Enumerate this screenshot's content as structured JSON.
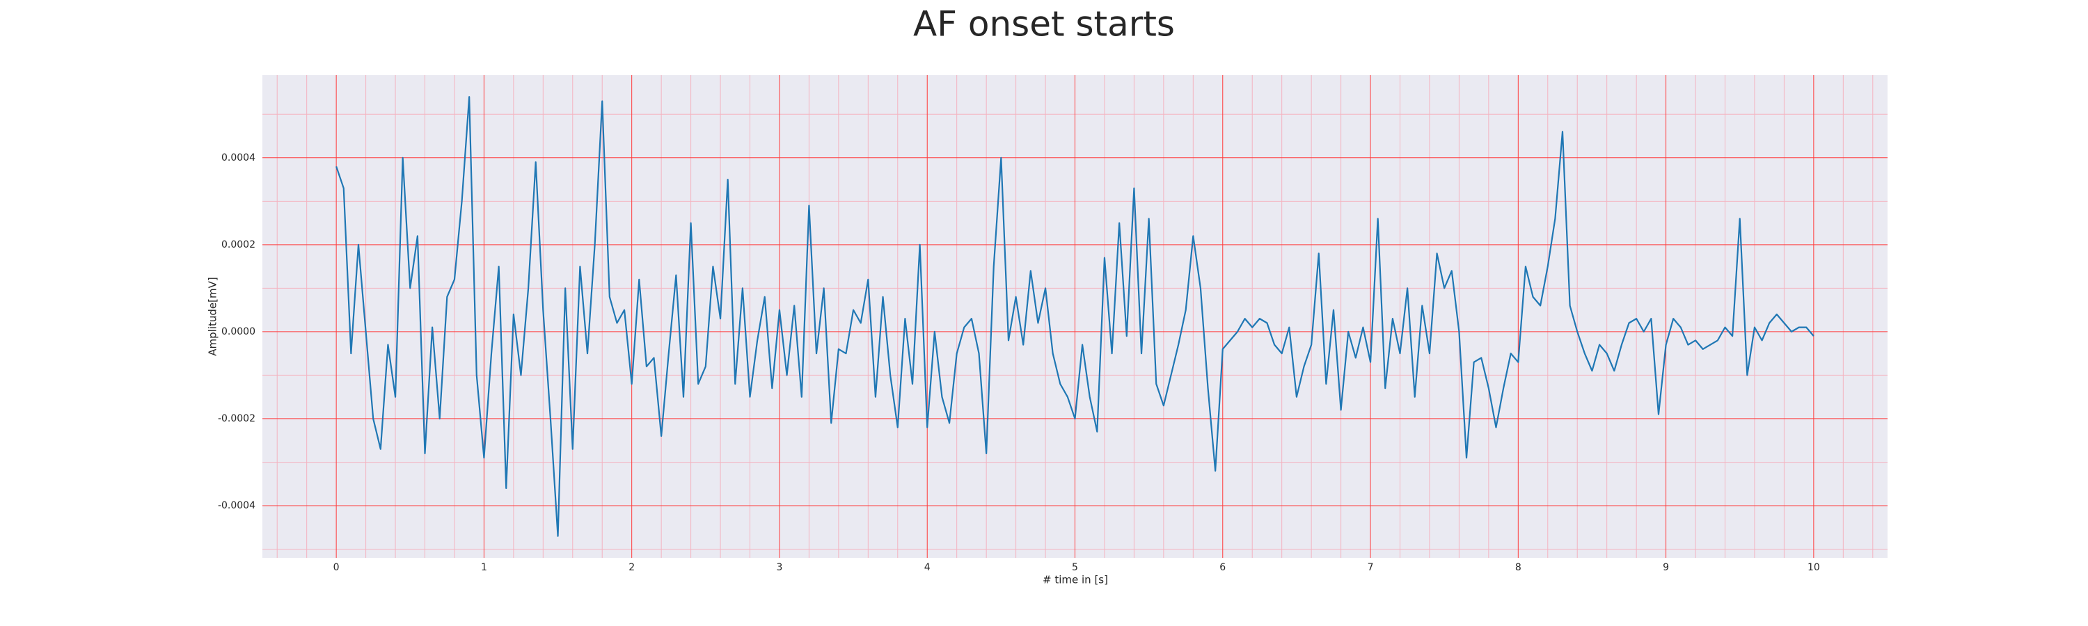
{
  "chart_data": {
    "type": "line",
    "title": "AF onset starts",
    "x_label": "# time in [s]",
    "y_label": "Amplitude[mV]",
    "color": "#1f77b4",
    "xlim": [
      -0.5,
      10.5
    ],
    "ylim": [
      -0.00052,
      0.00059
    ],
    "xticks": [
      0,
      1,
      2,
      3,
      4,
      5,
      6,
      7,
      8,
      9,
      10
    ],
    "yticks": [
      -0.0004,
      -0.0002,
      {
        "value": 0,
        "label": "0.0000"
      },
      0.0002,
      0.0004
    ],
    "xminorticks": [
      -0.4,
      -0.2,
      0.2,
      0.4,
      0.6,
      0.8,
      1.2,
      1.4,
      1.6,
      1.8,
      2.2,
      2.4,
      2.6,
      2.8,
      3.2,
      3.4,
      3.6,
      3.8,
      4.2,
      4.4,
      4.6,
      4.8,
      5.2,
      5.4,
      5.6,
      5.8,
      6.2,
      6.4,
      6.6,
      6.8,
      7.2,
      7.4,
      7.6,
      7.8,
      8.2,
      8.4,
      8.6,
      8.8,
      9.2,
      9.4,
      9.6,
      9.8,
      10.2,
      10.4
    ],
    "yminorticks": [
      -0.0005,
      -0.0003,
      -0.0001,
      0.0001,
      0.0003,
      0.0005
    ],
    "grid": true,
    "grid_color": "#ff3b3b",
    "minor_grid_color": "#f4b3c0",
    "background": "#eaeaf2",
    "x": [
      0,
      0.05,
      0.1,
      0.15,
      0.2,
      0.25,
      0.3,
      0.35,
      0.4,
      0.45,
      0.5,
      0.55,
      0.6,
      0.65,
      0.7,
      0.75,
      0.8,
      0.85,
      0.9,
      0.95,
      1,
      1.05,
      1.1,
      1.15,
      1.2,
      1.25,
      1.3,
      1.35,
      1.4,
      1.45,
      1.5,
      1.55,
      1.6,
      1.65,
      1.7,
      1.75,
      1.8,
      1.85,
      1.9,
      1.95,
      2,
      2.05,
      2.1,
      2.15,
      2.2,
      2.25,
      2.3,
      2.35,
      2.4,
      2.45,
      2.5,
      2.55,
      2.6,
      2.65,
      2.7,
      2.75,
      2.8,
      2.85,
      2.9,
      2.95,
      3,
      3.05,
      3.1,
      3.15,
      3.2,
      3.25,
      3.3,
      3.35,
      3.4,
      3.45,
      3.5,
      3.55,
      3.6,
      3.65,
      3.7,
      3.75,
      3.8,
      3.85,
      3.9,
      3.95,
      4,
      4.05,
      4.1,
      4.15,
      4.2,
      4.25,
      4.3,
      4.35,
      4.4,
      4.45,
      4.5,
      4.55,
      4.6,
      4.65,
      4.7,
      4.75,
      4.8,
      4.85,
      4.9,
      4.95,
      5,
      5.05,
      5.1,
      5.15,
      5.2,
      5.25,
      5.3,
      5.35,
      5.4,
      5.45,
      5.5,
      5.55,
      5.6,
      5.65,
      5.7,
      5.75,
      5.8,
      5.85,
      5.9,
      5.95,
      6,
      6.05,
      6.1,
      6.15,
      6.2,
      6.25,
      6.3,
      6.35,
      6.4,
      6.45,
      6.5,
      6.55,
      6.6,
      6.65,
      6.7,
      6.75,
      6.8,
      6.85,
      6.9,
      6.95,
      7,
      7.05,
      7.1,
      7.15,
      7.2,
      7.25,
      7.3,
      7.35,
      7.4,
      7.45,
      7.5,
      7.55,
      7.6,
      7.65,
      7.7,
      7.75,
      7.8,
      7.85,
      7.9,
      7.95,
      8,
      8.05,
      8.1,
      8.15,
      8.2,
      8.25,
      8.3,
      8.35,
      8.4,
      8.45,
      8.5,
      8.55,
      8.6,
      8.65,
      8.7,
      8.75,
      8.8,
      8.85,
      8.9,
      8.95,
      9,
      9.05,
      9.1,
      9.15,
      9.2,
      9.25,
      9.3,
      9.35,
      9.4,
      9.45,
      9.5,
      9.55,
      9.6,
      9.65,
      9.7,
      9.75,
      9.8,
      9.85,
      9.9,
      9.95,
      10
    ],
    "values": [
      0.00038,
      0.00033,
      -5e-05,
      0.0002,
      0.0,
      -0.0002,
      -0.00027,
      -3e-05,
      -0.00015,
      0.0004,
      0.0001,
      0.00022,
      -0.00028,
      1e-05,
      -0.0002,
      8e-05,
      0.00012,
      0.0003,
      0.00054,
      -0.0001,
      -0.00029,
      -5e-05,
      0.00015,
      -0.00036,
      4e-05,
      -0.0001,
      0.0001,
      0.00039,
      5e-05,
      -0.0002,
      -0.00047,
      0.0001,
      -0.00027,
      0.00015,
      -5e-05,
      0.0002,
      0.00053,
      8e-05,
      2e-05,
      5e-05,
      -0.00012,
      0.00012,
      -8e-05,
      -6e-05,
      -0.00024,
      -5e-05,
      0.00013,
      -0.00015,
      0.00025,
      -0.00012,
      -8e-05,
      0.00015,
      3e-05,
      0.00035,
      -0.00012,
      0.0001,
      -0.00015,
      -2e-05,
      8e-05,
      -0.00013,
      5e-05,
      -0.0001,
      6e-05,
      -0.00015,
      0.00029,
      -5e-05,
      0.0001,
      -0.00021,
      -4e-05,
      -5e-05,
      5e-05,
      2e-05,
      0.00012,
      -0.00015,
      8e-05,
      -0.0001,
      -0.00022,
      3e-05,
      -0.00012,
      0.0002,
      -0.00022,
      0.0,
      -0.00015,
      -0.00021,
      -5e-05,
      1e-05,
      3e-05,
      -5e-05,
      -0.00028,
      0.00015,
      0.0004,
      -2e-05,
      8e-05,
      -3e-05,
      0.00014,
      2e-05,
      0.0001,
      -5e-05,
      -0.00012,
      -0.00015,
      -0.0002,
      -3e-05,
      -0.00015,
      -0.00023,
      0.00017,
      -5e-05,
      0.00025,
      -1e-05,
      0.00033,
      -5e-05,
      0.00026,
      -0.00012,
      -0.00017,
      -0.0001,
      -3e-05,
      5e-05,
      0.00022,
      0.0001,
      -0.00013,
      -0.00032,
      -4e-05,
      -2e-05,
      0.0,
      3e-05,
      1e-05,
      3e-05,
      2e-05,
      -3e-05,
      -5e-05,
      1e-05,
      -0.00015,
      -8e-05,
      -3e-05,
      0.00018,
      -0.00012,
      5e-05,
      -0.00018,
      0.0,
      -6e-05,
      1e-05,
      -7e-05,
      0.00026,
      -0.00013,
      3e-05,
      -5e-05,
      0.0001,
      -0.00015,
      6e-05,
      -5e-05,
      0.00018,
      0.0001,
      0.00014,
      0.0,
      -0.00029,
      -7e-05,
      -6e-05,
      -0.00013,
      -0.00022,
      -0.00013,
      -5e-05,
      -7e-05,
      0.00015,
      8e-05,
      6e-05,
      0.00015,
      0.00026,
      0.00046,
      6e-05,
      0.0,
      -5e-05,
      -9e-05,
      -3e-05,
      -5e-05,
      -9e-05,
      -3e-05,
      2e-05,
      3e-05,
      0.0,
      3e-05,
      -0.00019,
      -3e-05,
      3e-05,
      1e-05,
      -3e-05,
      -2e-05,
      -4e-05,
      -3e-05,
      -2e-05,
      1e-05,
      -1e-05,
      0.00026,
      -0.0001,
      1e-05,
      -2e-05,
      2e-05,
      4e-05,
      2e-05,
      0.0,
      1e-05,
      1e-05,
      -1e-05
    ]
  }
}
